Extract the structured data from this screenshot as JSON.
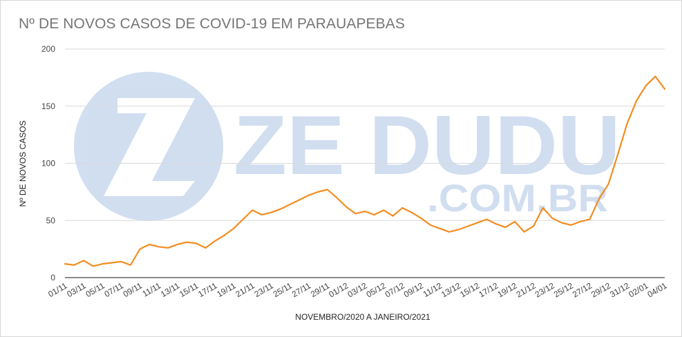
{
  "chart_data": {
    "type": "line",
    "title": "Nº DE NOVOS CASOS DE COVID-19 EM PARAUAPEBAS",
    "xlabel": "NOVEMBRO/2020 A JANEIRO/2021",
    "ylabel": "Nº DE NOVOS CASOS",
    "ylim": [
      0,
      200
    ],
    "yticks": [
      0,
      50,
      100,
      150,
      200
    ],
    "grid": true,
    "line_color": "#f28c1e",
    "xtick_labels": [
      "01/11",
      "03/11",
      "05/11",
      "07/11",
      "09/11",
      "11/11",
      "13/11",
      "15/11",
      "17/11",
      "19/11",
      "21/11",
      "23/11",
      "25/11",
      "27/11",
      "29/11",
      "01/12",
      "03/12",
      "05/12",
      "07/12",
      "09/12",
      "11/12",
      "13/12",
      "15/12",
      "17/12",
      "19/12",
      "21/12",
      "23/12",
      "25/12",
      "27/12",
      "29/12",
      "31/12",
      "02/01",
      "04/01"
    ],
    "values": [
      12,
      11,
      15,
      10,
      12,
      13,
      14,
      11,
      25,
      29,
      27,
      26,
      29,
      31,
      30,
      26,
      32,
      37,
      43,
      51,
      59,
      55,
      57,
      60,
      64,
      68,
      72,
      75,
      77,
      70,
      62,
      56,
      58,
      55,
      59,
      54,
      61,
      57,
      52,
      46,
      43,
      40,
      42,
      45,
      48,
      51,
      47,
      44,
      49,
      40,
      45,
      61,
      52,
      48,
      46,
      49,
      51,
      69,
      82,
      108,
      135,
      155,
      168,
      176,
      165
    ]
  },
  "watermark": {
    "text_main": "ZE DUDU",
    "text_sub": ".COM.BR",
    "color": "#c9d9ee"
  }
}
